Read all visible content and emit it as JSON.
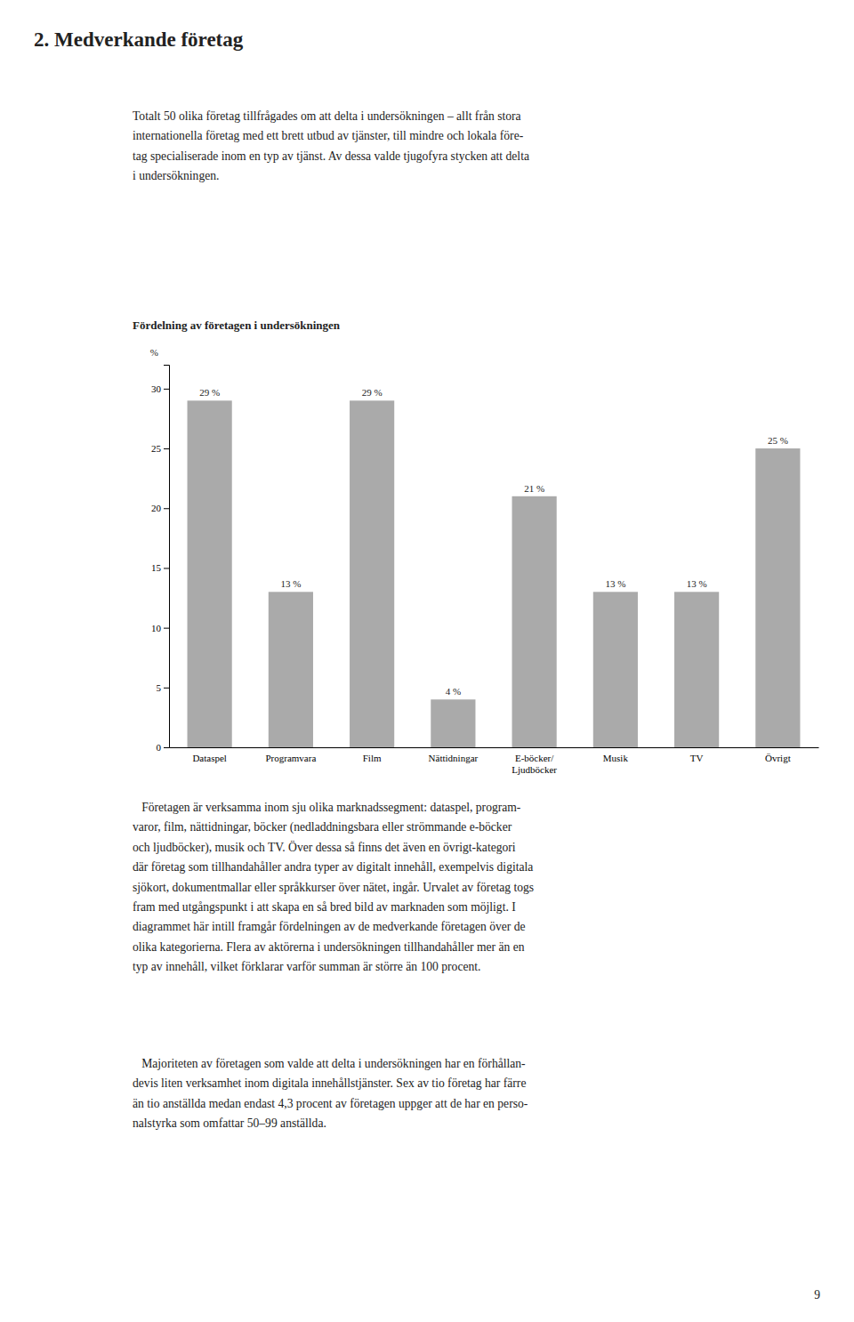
{
  "page_title": "2. Medverkande företag",
  "intro_text": "Totalt 50 olika företag tillfrågades om att delta i undersökningen – allt från stora\ninternationella företag med ett brett utbud av tjänster, till mindre och lokala före-\ntag specialiserade inom en typ av tjänst. Av dessa valde tjugofyra stycken att delta\ni undersökningen.",
  "body_para1": "   Företagen är verksamma inom sju olika marknadssegment: dataspel, program-\nvaror, film, nättidningar, böcker (nedladdningsbara eller strömmande e-böcker\noch ljudböcker), musik och TV. Över dessa så finns det även en övrigt-kategori\ndär företag som tillhandahåller andra typer av digitalt innehåll, exempelvis digitala\nsjökort, dokumentmallar eller språkkurser över nätet, ingår. Urvalet av företag togs\nfram med utgångspunkt i att skapa en så bred bild av marknaden som möjligt. I\ndiagrammet här intill framgår fördelningen av de medverkande företagen över de\nolika kategorierna. Flera av aktörerna i undersökningen tillhandahåller mer än en\ntyp av innehåll, vilket förklarar varför summan är större än 100 procent.",
  "body_para2": "   Majoriteten av företagen som valde att delta i undersökningen har en förhållan-\ndevis liten verksamhet inom digitala innehållstjänster. Sex av tio företag har färre\nän tio anställda medan endast 4,3 procent av företagen uppger att de har en perso-\nnalstyrka som omfattar 50–99 anställda.",
  "page_number": "9",
  "chart_data": {
    "type": "bar",
    "title": "Fördelning av företagen i undersökningen",
    "ylabel": "%",
    "categories": [
      "Dataspel",
      "Programvara",
      "Film",
      "Nättidningar",
      "E-böcker/\nLjudböcker",
      "Musik",
      "TV",
      "Övrigt"
    ],
    "values": [
      29,
      13,
      29,
      4,
      21,
      13,
      13,
      25
    ],
    "value_labels": [
      "29 %",
      "13 %",
      "29 %",
      "4 %",
      "21 %",
      "13 %",
      "13 %",
      "25 %"
    ],
    "data_labels": true,
    "color": "#aaaaaa",
    "ylim": [
      0,
      32
    ],
    "yticks": [
      0,
      5,
      10,
      15,
      20,
      25,
      30
    ],
    "grid": false
  }
}
